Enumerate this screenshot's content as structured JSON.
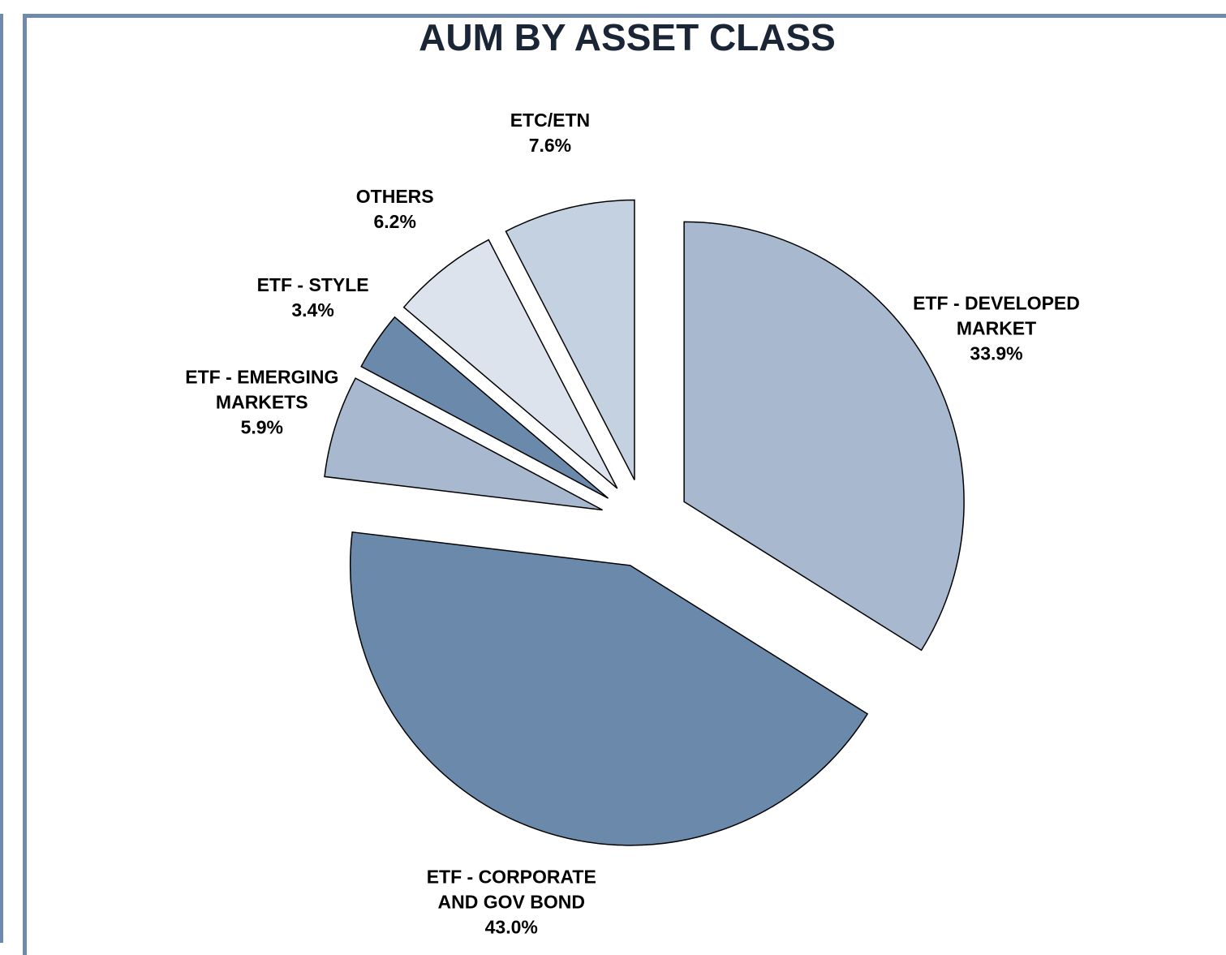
{
  "chart_data": {
    "type": "pie",
    "title": "AUM BY ASSET CLASS",
    "categories": [
      "ETF - DEVELOPED MARKET",
      "ETF - CORPORATE AND GOV BOND",
      "ETF - EMERGING MARKETS",
      "ETF - STYLE",
      "OTHERS",
      "ETC/ETN"
    ],
    "values": [
      33.9,
      43.0,
      5.9,
      3.4,
      6.2,
      7.6
    ],
    "value_labels": [
      "33.9%",
      "43.0%",
      "5.9%",
      "3.4%",
      "6.2%",
      "7.6%"
    ],
    "colors": [
      "#a7b8cf",
      "#6b89ab",
      "#a7b8cf",
      "#6b89ab",
      "#dce3ec",
      "#c3d1e0"
    ]
  }
}
